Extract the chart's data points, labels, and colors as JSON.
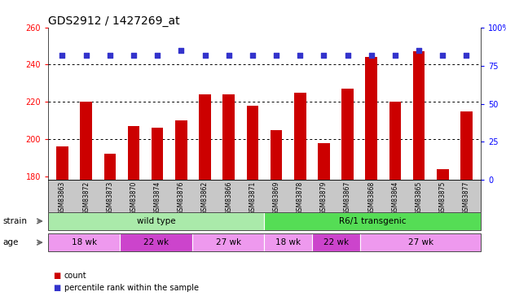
{
  "title": "GDS2912 / 1427269_at",
  "samples": [
    "GSM83863",
    "GSM83872",
    "GSM83873",
    "GSM83870",
    "GSM83874",
    "GSM83876",
    "GSM83862",
    "GSM83866",
    "GSM83871",
    "GSM83869",
    "GSM83878",
    "GSM83879",
    "GSM83867",
    "GSM83868",
    "GSM83864",
    "GSM83865",
    "GSM83875",
    "GSM83877"
  ],
  "counts": [
    196,
    220,
    192,
    207,
    206,
    210,
    224,
    224,
    218,
    205,
    225,
    198,
    227,
    244,
    220,
    247,
    184,
    215
  ],
  "percentiles": [
    82,
    82,
    82,
    82,
    82,
    85,
    82,
    82,
    82,
    82,
    82,
    82,
    82,
    82,
    82,
    85,
    82,
    82
  ],
  "bar_color": "#cc0000",
  "dot_color": "#3333cc",
  "ymin": 178,
  "ymax": 260,
  "y2min": 0,
  "y2max": 100,
  "yticks": [
    180,
    200,
    220,
    240,
    260
  ],
  "y2ticks": [
    0,
    25,
    50,
    75,
    100
  ],
  "y2ticklabels": [
    "0",
    "25",
    "50",
    "75",
    "100%"
  ],
  "grid_vals": [
    200,
    220,
    240
  ],
  "strain_groups": [
    {
      "label": "wild type",
      "start": 0,
      "end": 9,
      "color": "#aaeaaa"
    },
    {
      "label": "R6/1 transgenic",
      "start": 9,
      "end": 18,
      "color": "#55dd55"
    }
  ],
  "age_groups": [
    {
      "label": "18 wk",
      "start": 0,
      "end": 3,
      "color": "#ee99ee"
    },
    {
      "label": "22 wk",
      "start": 3,
      "end": 6,
      "color": "#cc44cc"
    },
    {
      "label": "27 wk",
      "start": 6,
      "end": 9,
      "color": "#ee99ee"
    },
    {
      "label": "18 wk",
      "start": 9,
      "end": 11,
      "color": "#ee99ee"
    },
    {
      "label": "22 wk",
      "start": 11,
      "end": 13,
      "color": "#cc44cc"
    },
    {
      "label": "27 wk",
      "start": 13,
      "end": 18,
      "color": "#ee99ee"
    }
  ],
  "legend_items": [
    {
      "label": "count",
      "color": "#cc0000"
    },
    {
      "label": "percentile rank within the sample",
      "color": "#3333cc"
    }
  ],
  "title_fontsize": 10,
  "bar_width": 0.5
}
